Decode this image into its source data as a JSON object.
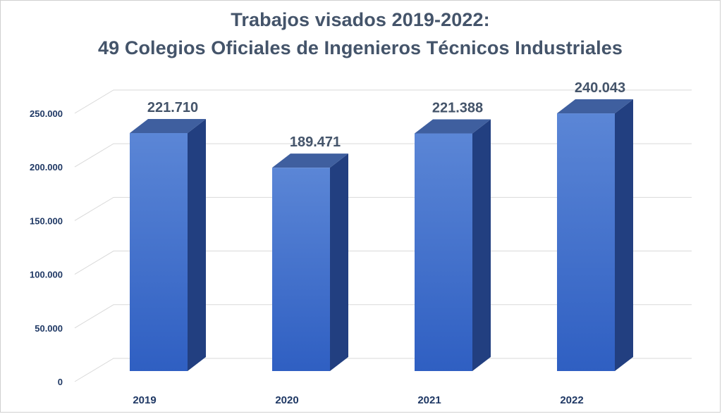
{
  "chart_data": {
    "type": "bar",
    "title": "Trabajos visados 2019-2022:",
    "subtitle": "49 Colegios Oficiales de Ingenieros Técnicos Industriales",
    "categories": [
      "2019",
      "2020",
      "2021",
      "2022"
    ],
    "values": [
      221710,
      189471,
      221388,
      240043
    ],
    "data_labels": [
      "221.710",
      "189.471",
      "221.388",
      "240.043"
    ],
    "ylim": [
      0,
      250000
    ],
    "yticks": [
      0,
      50000,
      100000,
      150000,
      200000,
      250000
    ],
    "ytick_labels": [
      "0",
      "50.000",
      "100.000",
      "150.000",
      "200.000",
      "250.000"
    ],
    "xlabel": "",
    "ylabel": "",
    "grid": true,
    "style": "3d-column",
    "colors": {
      "bar_front_top": "#5b86d6",
      "bar_front_bottom": "#2f5fc2",
      "bar_side": "#223f80",
      "bar_top": "#3f5f9f",
      "title": "#44546a",
      "axis_text": "#1f3864",
      "grid": "#d9d9d9"
    }
  }
}
